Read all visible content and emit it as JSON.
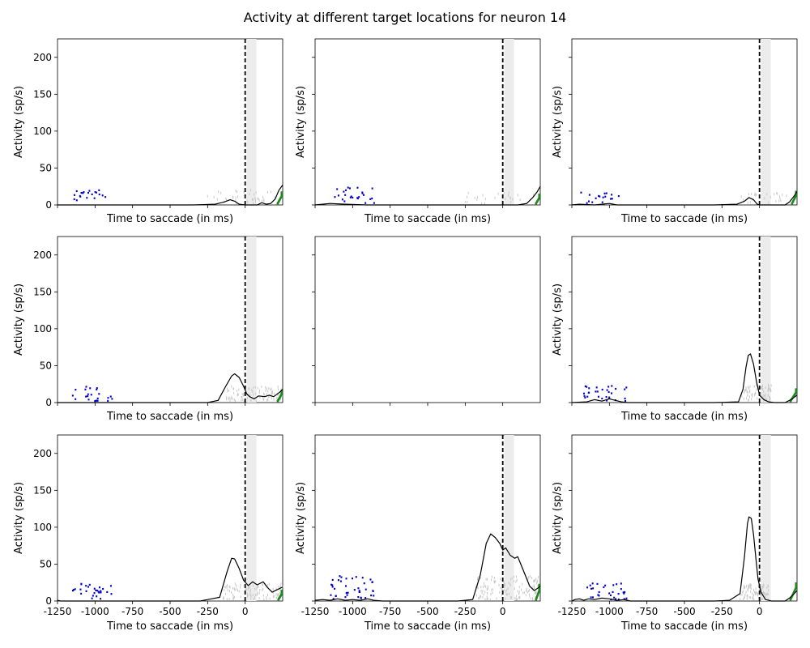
{
  "title": "Activity at different target locations for neuron 14",
  "chart_data": {
    "type": "line",
    "title": "Activity at different target locations for neuron 14",
    "grid": "3x3",
    "grid_lines": false,
    "xlabel": "Time to saccade (in ms)",
    "ylabel": "Activity (sp/s)",
    "xlim": [
      -1250,
      250
    ],
    "ylim": [
      0,
      225
    ],
    "xticks": [
      -1250,
      -1000,
      -750,
      -500,
      -250,
      0
    ],
    "xtick_labels": [
      "-1250",
      "-1000",
      "-750",
      "-500",
      "-250",
      "0"
    ],
    "yticks": [
      0,
      50,
      100,
      150,
      200
    ],
    "ytick_labels": [
      "0",
      "50",
      "100",
      "150",
      "200"
    ],
    "saccade_line_x": 0,
    "shaded_window": [
      10,
      75
    ],
    "panels": [
      {
        "position": "top-left",
        "empty": false,
        "rate": [
          [
            -1250,
            0
          ],
          [
            -700,
            0
          ],
          [
            -350,
            0
          ],
          [
            -200,
            1
          ],
          [
            -140,
            4
          ],
          [
            -100,
            7
          ],
          [
            -70,
            5
          ],
          [
            -40,
            1
          ],
          [
            0,
            0
          ],
          [
            80,
            0
          ],
          [
            110,
            3
          ],
          [
            140,
            1
          ],
          [
            170,
            2
          ],
          [
            200,
            8
          ],
          [
            225,
            20
          ],
          [
            250,
            27
          ]
        ],
        "target_raster": {
          "x_range": [
            -1140,
            -930
          ],
          "y_range": [
            2,
            20
          ],
          "n": 20
        },
        "saccade_raster": {
          "x_range": [
            -260,
            210
          ],
          "y_range": [
            2,
            20
          ],
          "n": 40
        },
        "end_raster": {
          "x_range": [
            210,
            250
          ],
          "y_range": [
            2,
            17
          ],
          "n": 12
        }
      },
      {
        "position": "top-center",
        "empty": false,
        "rate": [
          [
            -1250,
            0
          ],
          [
            -1150,
            2
          ],
          [
            -1050,
            1
          ],
          [
            -900,
            0
          ],
          [
            -300,
            0
          ],
          [
            0,
            0
          ],
          [
            100,
            0
          ],
          [
            160,
            2
          ],
          [
            200,
            10
          ],
          [
            230,
            18
          ],
          [
            250,
            25
          ]
        ],
        "target_raster": {
          "x_range": [
            -1130,
            -850
          ],
          "y_range": [
            2,
            24
          ],
          "n": 25
        },
        "saccade_raster": {
          "x_range": [
            -300,
            220
          ],
          "y_range": [
            2,
            18
          ],
          "n": 25
        },
        "end_raster": {
          "x_range": [
            215,
            250
          ],
          "y_range": [
            2,
            14
          ],
          "n": 10
        }
      },
      {
        "position": "top-right",
        "empty": false,
        "rate": [
          [
            -1250,
            0
          ],
          [
            -1200,
            1
          ],
          [
            -1100,
            0
          ],
          [
            -1000,
            2
          ],
          [
            -950,
            0
          ],
          [
            -800,
            0
          ],
          [
            -300,
            0
          ],
          [
            -150,
            1
          ],
          [
            -100,
            5
          ],
          [
            -70,
            10
          ],
          [
            -40,
            7
          ],
          [
            -15,
            1
          ],
          [
            0,
            0
          ],
          [
            100,
            0
          ],
          [
            170,
            0
          ],
          [
            200,
            4
          ],
          [
            230,
            12
          ],
          [
            250,
            18
          ]
        ],
        "target_raster": {
          "x_range": [
            -1200,
            -930
          ],
          "y_range": [
            2,
            17
          ],
          "n": 17
        },
        "saccade_raster": {
          "x_range": [
            -130,
            210
          ],
          "y_range": [
            2,
            16
          ],
          "n": 25
        },
        "end_raster": {
          "x_range": [
            210,
            250
          ],
          "y_range": [
            2,
            18
          ],
          "n": 12
        }
      },
      {
        "position": "middle-left",
        "empty": false,
        "rate": [
          [
            -1250,
            0
          ],
          [
            -650,
            0
          ],
          [
            -250,
            0
          ],
          [
            -180,
            3
          ],
          [
            -130,
            22
          ],
          [
            -90,
            36
          ],
          [
            -70,
            39
          ],
          [
            -40,
            34
          ],
          [
            -10,
            22
          ],
          [
            10,
            12
          ],
          [
            30,
            8
          ],
          [
            60,
            5
          ],
          [
            90,
            9
          ],
          [
            130,
            8
          ],
          [
            160,
            10
          ],
          [
            190,
            8
          ],
          [
            230,
            14
          ],
          [
            250,
            18
          ]
        ],
        "target_raster": {
          "x_range": [
            -1150,
            -870
          ],
          "y_range": [
            2,
            22
          ],
          "n": 23
        },
        "saccade_raster": {
          "x_range": [
            -130,
            250
          ],
          "y_range": [
            2,
            22
          ],
          "n": 90
        },
        "end_raster": {
          "x_range": [
            210,
            250
          ],
          "y_range": [
            2,
            16
          ],
          "n": 14
        }
      },
      {
        "position": "middle-center",
        "empty": true
      },
      {
        "position": "middle-right",
        "empty": false,
        "rate": [
          [
            -1250,
            0
          ],
          [
            -1150,
            1
          ],
          [
            -1100,
            4
          ],
          [
            -1050,
            2
          ],
          [
            -1000,
            5
          ],
          [
            -960,
            3
          ],
          [
            -920,
            1
          ],
          [
            -880,
            0
          ],
          [
            -300,
            0
          ],
          [
            -140,
            1
          ],
          [
            -110,
            18
          ],
          [
            -90,
            48
          ],
          [
            -75,
            64
          ],
          [
            -60,
            66
          ],
          [
            -40,
            52
          ],
          [
            -20,
            28
          ],
          [
            0,
            10
          ],
          [
            30,
            4
          ],
          [
            60,
            1
          ],
          [
            100,
            0
          ],
          [
            170,
            0
          ],
          [
            200,
            3
          ],
          [
            230,
            7
          ],
          [
            250,
            10
          ]
        ],
        "target_raster": {
          "x_range": [
            -1170,
            -860
          ],
          "y_range": [
            2,
            24
          ],
          "n": 30
        },
        "saccade_raster": {
          "x_range": [
            -120,
            80
          ],
          "y_range": [
            2,
            24
          ],
          "n": 80
        },
        "end_raster": {
          "x_range": [
            200,
            250
          ],
          "y_range": [
            2,
            18
          ],
          "n": 14
        }
      },
      {
        "position": "bottom-left",
        "empty": false,
        "rate": [
          [
            -1250,
            1
          ],
          [
            -1230,
            0
          ],
          [
            -300,
            0
          ],
          [
            -170,
            5
          ],
          [
            -120,
            40
          ],
          [
            -90,
            58
          ],
          [
            -70,
            57
          ],
          [
            -40,
            44
          ],
          [
            -10,
            28
          ],
          [
            20,
            21
          ],
          [
            50,
            26
          ],
          [
            80,
            22
          ],
          [
            120,
            26
          ],
          [
            150,
            18
          ],
          [
            180,
            12
          ],
          [
            210,
            15
          ],
          [
            250,
            19
          ]
        ],
        "target_raster": {
          "x_range": [
            -1150,
            -870
          ],
          "y_range": [
            2,
            24
          ],
          "n": 28
        },
        "saccade_raster": {
          "x_range": [
            -150,
            250
          ],
          "y_range": [
            2,
            24
          ],
          "n": 100
        },
        "end_raster": {
          "x_range": [
            215,
            250
          ],
          "y_range": [
            2,
            14
          ],
          "n": 12
        }
      },
      {
        "position": "bottom-center",
        "empty": false,
        "rate": [
          [
            -1250,
            1
          ],
          [
            -1200,
            2
          ],
          [
            -1150,
            1
          ],
          [
            -1100,
            3
          ],
          [
            -1050,
            1
          ],
          [
            -1000,
            2
          ],
          [
            -950,
            1
          ],
          [
            -900,
            3
          ],
          [
            -860,
            1
          ],
          [
            -800,
            0
          ],
          [
            -300,
            0
          ],
          [
            -200,
            2
          ],
          [
            -150,
            35
          ],
          [
            -110,
            78
          ],
          [
            -80,
            91
          ],
          [
            -50,
            86
          ],
          [
            -20,
            78
          ],
          [
            0,
            69
          ],
          [
            20,
            72
          ],
          [
            50,
            62
          ],
          [
            80,
            58
          ],
          [
            100,
            60
          ],
          [
            120,
            50
          ],
          [
            150,
            35
          ],
          [
            180,
            20
          ],
          [
            210,
            14
          ],
          [
            250,
            20
          ]
        ],
        "target_raster": {
          "x_range": [
            -1170,
            -860
          ],
          "y_range": [
            2,
            34
          ],
          "n": 40
        },
        "saccade_raster": {
          "x_range": [
            -180,
            250
          ],
          "y_range": [
            2,
            34
          ],
          "n": 140
        },
        "end_raster": {
          "x_range": [
            215,
            250
          ],
          "y_range": [
            2,
            22
          ],
          "n": 14
        }
      },
      {
        "position": "bottom-right",
        "empty": false,
        "rate": [
          [
            -1250,
            0
          ],
          [
            -1230,
            2
          ],
          [
            -1200,
            3
          ],
          [
            -1170,
            1
          ],
          [
            -1140,
            3
          ],
          [
            -1100,
            2
          ],
          [
            -1050,
            4
          ],
          [
            -1000,
            3
          ],
          [
            -950,
            1
          ],
          [
            -900,
            2
          ],
          [
            -860,
            0
          ],
          [
            -600,
            0
          ],
          [
            -300,
            0
          ],
          [
            -200,
            1
          ],
          [
            -130,
            10
          ],
          [
            -100,
            60
          ],
          [
            -80,
            105
          ],
          [
            -70,
            114
          ],
          [
            -55,
            112
          ],
          [
            -40,
            90
          ],
          [
            -25,
            60
          ],
          [
            -10,
            30
          ],
          [
            10,
            12
          ],
          [
            40,
            2
          ],
          [
            80,
            0
          ],
          [
            170,
            0
          ],
          [
            200,
            4
          ],
          [
            230,
            10
          ],
          [
            250,
            14
          ]
        ],
        "target_raster": {
          "x_range": [
            -1160,
            -870
          ],
          "y_range": [
            2,
            24
          ],
          "n": 30
        },
        "saccade_raster": {
          "x_range": [
            -130,
            60
          ],
          "y_range": [
            2,
            24
          ],
          "n": 90
        },
        "end_raster": {
          "x_range": [
            200,
            250
          ],
          "y_range": [
            2,
            24
          ],
          "n": 14
        }
      }
    ]
  },
  "colors": {
    "rate_line": "#000000",
    "saccade_line": "#000000",
    "shaded_window": "#ececec",
    "target_raster": "#0000cc",
    "saccade_raster": "#c8c8c8",
    "end_raster": "#1a8a1a"
  }
}
